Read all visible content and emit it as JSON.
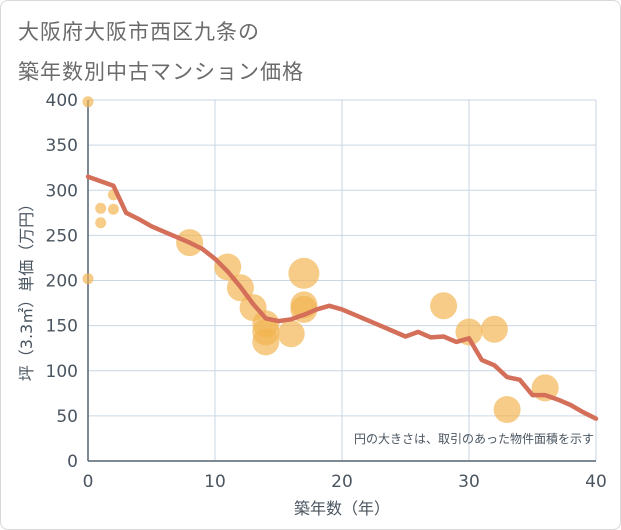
{
  "title": {
    "line1": "大阪府大阪市西区九条の",
    "line2": "築年数別中古マンション価格"
  },
  "chart_data": {
    "type": "scatter",
    "title": "大阪府大阪市西区九条の築年数別中古マンション価格",
    "xlabel": "築年数（年）",
    "ylabel": "坪（3.3㎡）単価（万円）",
    "xlim": [
      0,
      40
    ],
    "ylim": [
      0,
      400
    ],
    "xticks": [
      0,
      10,
      20,
      30,
      40
    ],
    "yticks": [
      0,
      50,
      100,
      150,
      200,
      250,
      300,
      350,
      400
    ],
    "grid": true,
    "annotation": "円の大きさは、取引のあった物件面積を示す",
    "colors": {
      "bubble": "#f2b450",
      "line": "#d4705a",
      "grid": "#c9d6e3",
      "axis": "#556270"
    },
    "bubbles": [
      {
        "x": 0,
        "y": 398,
        "size": 1
      },
      {
        "x": 0,
        "y": 202,
        "size": 1
      },
      {
        "x": 1,
        "y": 280,
        "size": 1
      },
      {
        "x": 1,
        "y": 264,
        "size": 1
      },
      {
        "x": 2,
        "y": 295,
        "size": 1
      },
      {
        "x": 2,
        "y": 279,
        "size": 1
      },
      {
        "x": 8,
        "y": 242,
        "size": 5
      },
      {
        "x": 11,
        "y": 215,
        "size": 5
      },
      {
        "x": 12,
        "y": 192,
        "size": 5
      },
      {
        "x": 13,
        "y": 170,
        "size": 5
      },
      {
        "x": 14,
        "y": 152,
        "size": 5
      },
      {
        "x": 14,
        "y": 143,
        "size": 5
      },
      {
        "x": 14,
        "y": 132,
        "size": 5
      },
      {
        "x": 16,
        "y": 141,
        "size": 5
      },
      {
        "x": 17,
        "y": 208,
        "size": 6
      },
      {
        "x": 17,
        "y": 173,
        "size": 5
      },
      {
        "x": 17,
        "y": 168,
        "size": 5
      },
      {
        "x": 28,
        "y": 172,
        "size": 5
      },
      {
        "x": 30,
        "y": 143,
        "size": 5
      },
      {
        "x": 32,
        "y": 146,
        "size": 5
      },
      {
        "x": 33,
        "y": 57,
        "size": 5
      },
      {
        "x": 36,
        "y": 81,
        "size": 5
      }
    ],
    "trend_line": [
      [
        0,
        315
      ],
      [
        1,
        310
      ],
      [
        2,
        305
      ],
      [
        3,
        275
      ],
      [
        4,
        268
      ],
      [
        5,
        260
      ],
      [
        6,
        254
      ],
      [
        7,
        248
      ],
      [
        8,
        242
      ],
      [
        9,
        235
      ],
      [
        10,
        224
      ],
      [
        11,
        210
      ],
      [
        12,
        193
      ],
      [
        13,
        174
      ],
      [
        14,
        158
      ],
      [
        15,
        155
      ],
      [
        16,
        157
      ],
      [
        17,
        162
      ],
      [
        18,
        168
      ],
      [
        19,
        172
      ],
      [
        20,
        168
      ],
      [
        21,
        162
      ],
      [
        22,
        156
      ],
      [
        23,
        150
      ],
      [
        24,
        144
      ],
      [
        25,
        138
      ],
      [
        26,
        143
      ],
      [
        27,
        137
      ],
      [
        28,
        138
      ],
      [
        29,
        132
      ],
      [
        30,
        136
      ],
      [
        31,
        112
      ],
      [
        32,
        106
      ],
      [
        33,
        93
      ],
      [
        34,
        90
      ],
      [
        35,
        73
      ],
      [
        36,
        73
      ],
      [
        37,
        68
      ],
      [
        38,
        62
      ],
      [
        39,
        54
      ],
      [
        40,
        47
      ]
    ]
  }
}
